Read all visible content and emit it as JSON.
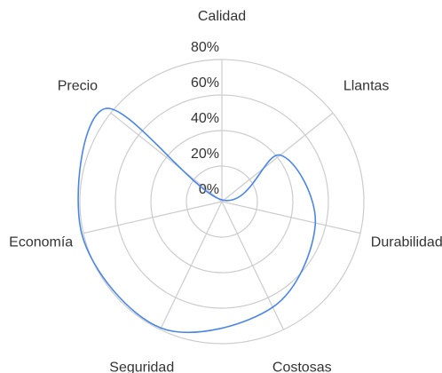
{
  "chart_data": {
    "type": "radar",
    "categories": [
      "Calidad",
      "Llantas",
      "Durabilidad",
      "Costosas",
      "Seguridad",
      "Economía",
      "Precio"
    ],
    "values": [
      1,
      42,
      54,
      66,
      79,
      81,
      84
    ],
    "color": "#4a86e8",
    "ylim": [
      0,
      80
    ],
    "yticks": [
      {
        "value": 0,
        "label": "0%"
      },
      {
        "value": 20,
        "label": "20%"
      },
      {
        "value": 40,
        "label": "40%"
      },
      {
        "value": 60,
        "label": "60%"
      },
      {
        "value": 80,
        "label": "80%"
      }
    ],
    "grid": true
  }
}
